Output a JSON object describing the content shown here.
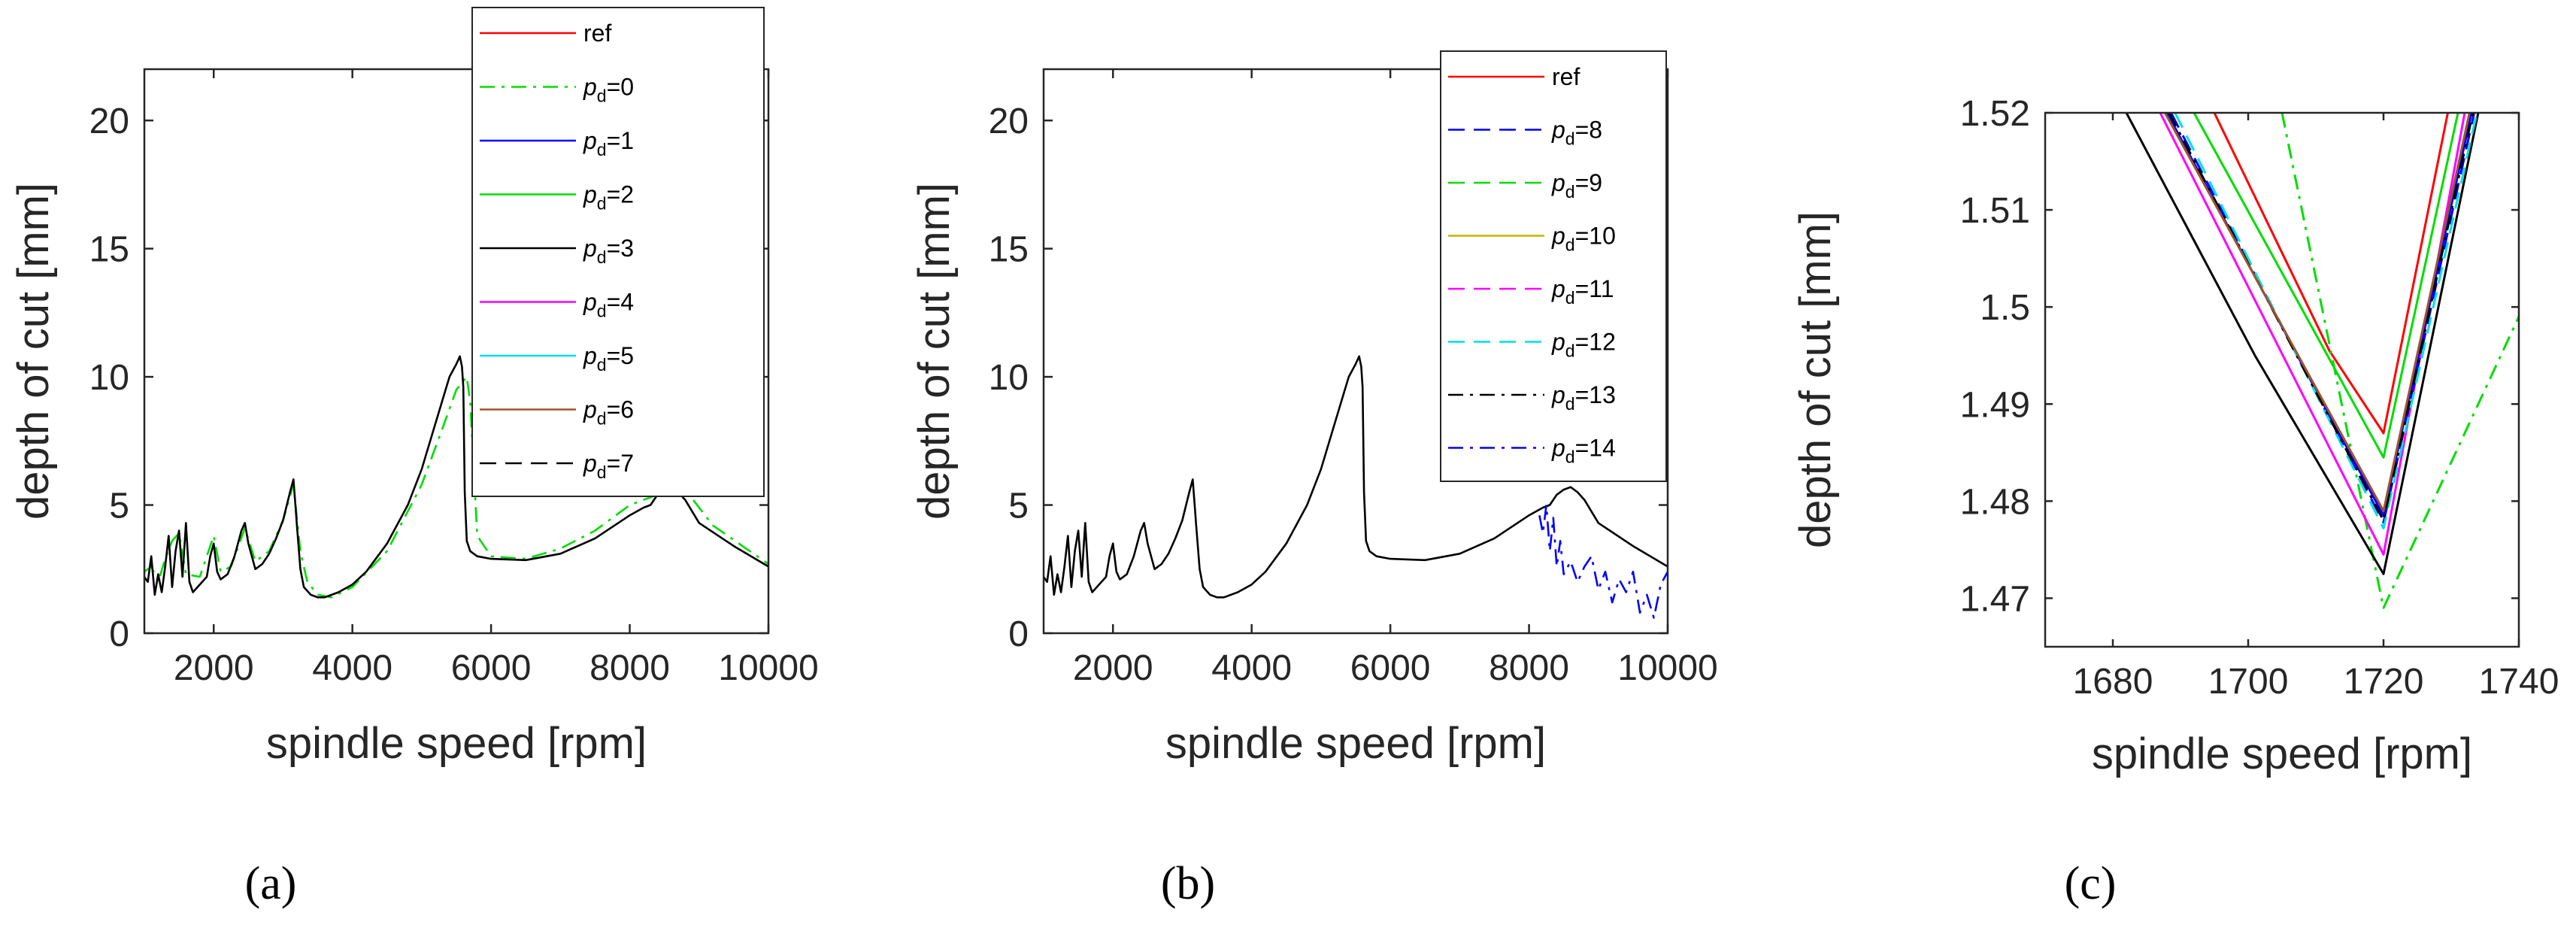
{
  "colors": {
    "ref": "#ff0000",
    "green": "#00dd00",
    "blue": "#0000ff",
    "black": "#000000",
    "magenta": "#ff00ff",
    "cyan": "#00e0e0",
    "brown": "#a0522d",
    "olive": "#c8b400",
    "axis": "#262626"
  },
  "chart_data": [
    {
      "type": "line",
      "panel": "a",
      "caption": "(a)",
      "xlabel": "spindle speed [rpm]",
      "ylabel": "depth of cut [mm]",
      "xlim": [
        1000,
        10000
      ],
      "ylim": [
        0,
        22
      ],
      "xticks": [
        2000,
        4000,
        6000,
        8000,
        10000
      ],
      "yticks": [
        0,
        5,
        10,
        15,
        20
      ],
      "legend_position": "top-right",
      "legend": [
        {
          "label": "ref",
          "sub": "",
          "eq": "",
          "color": "ref",
          "dash": "solid"
        },
        {
          "label": "p",
          "sub": "d",
          "eq": "=0",
          "color": "green",
          "dash": "dashdot"
        },
        {
          "label": "p",
          "sub": "d",
          "eq": "=1",
          "color": "blue",
          "dash": "solid"
        },
        {
          "label": "p",
          "sub": "d",
          "eq": "=2",
          "color": "green",
          "dash": "solid"
        },
        {
          "label": "p",
          "sub": "d",
          "eq": "=3",
          "color": "black",
          "dash": "solid"
        },
        {
          "label": "p",
          "sub": "d",
          "eq": "=4",
          "color": "magenta",
          "dash": "solid"
        },
        {
          "label": "p",
          "sub": "d",
          "eq": "=5",
          "color": "cyan",
          "dash": "solid"
        },
        {
          "label": "p",
          "sub": "d",
          "eq": "=6",
          "color": "brown",
          "dash": "solid"
        },
        {
          "label": "p",
          "sub": "d",
          "eq": "=7",
          "color": "black",
          "dash": "dashed"
        }
      ],
      "series": [
        {
          "name": "p_d=0",
          "color": "green",
          "dash": "dashdot",
          "x": [
            1000,
            1100,
            1200,
            1300,
            1400,
            1500,
            1600,
            1800,
            2000,
            2100,
            2250,
            2450,
            2600,
            2800,
            3000,
            3150,
            3250,
            3350,
            3500,
            3700,
            4000,
            4500,
            5000,
            5300,
            5500,
            5650,
            5700,
            5800,
            6000,
            6500,
            7000,
            7500,
            8000,
            8300,
            8550,
            8700,
            8800,
            9200,
            10000
          ],
          "y": [
            2.4,
            2.6,
            2.0,
            2.9,
            3.6,
            3.9,
            2.3,
            2.2,
            3.8,
            2.4,
            2.6,
            4.1,
            2.8,
            3.2,
            4.4,
            5.8,
            3.2,
            2.0,
            1.5,
            1.4,
            1.8,
            3.2,
            5.8,
            8.0,
            9.5,
            10.0,
            9.0,
            3.8,
            3.0,
            2.9,
            3.3,
            4.0,
            5.0,
            5.3,
            5.6,
            5.9,
            5.6,
            4.2,
            2.7
          ]
        },
        {
          "name": "ref",
          "color": "black",
          "dash": "solid",
          "x": [
            1000,
            1050,
            1100,
            1150,
            1200,
            1250,
            1300,
            1350,
            1400,
            1450,
            1500,
            1550,
            1600,
            1650,
            1700,
            1800,
            1900,
            1950,
            2000,
            2050,
            2100,
            2200,
            2300,
            2400,
            2450,
            2500,
            2600,
            2700,
            2800,
            2900,
            3000,
            3100,
            3150,
            3200,
            3250,
            3300,
            3400,
            3500,
            3600,
            3800,
            4000,
            4200,
            4500,
            4800,
            5000,
            5200,
            5400,
            5500,
            5550,
            5580,
            5600,
            5620,
            5650,
            5700,
            5800,
            6000,
            6500,
            7000,
            7500,
            8000,
            8200,
            8300,
            8400,
            8500,
            8600,
            8700,
            8800,
            9000,
            9500,
            10000
          ],
          "y": [
            2.2,
            2.0,
            3.0,
            1.5,
            2.3,
            1.6,
            2.6,
            3.8,
            1.8,
            3.2,
            4.0,
            2.2,
            4.3,
            2.0,
            1.6,
            1.9,
            2.2,
            3.0,
            3.5,
            2.4,
            2.1,
            2.3,
            3.0,
            4.0,
            4.3,
            3.5,
            2.5,
            2.7,
            3.1,
            3.7,
            4.4,
            5.5,
            6.0,
            4.2,
            2.5,
            1.8,
            1.5,
            1.4,
            1.4,
            1.6,
            1.9,
            2.4,
            3.5,
            5.0,
            6.4,
            8.2,
            10.0,
            10.5,
            10.8,
            10.4,
            9.6,
            5.5,
            3.6,
            3.2,
            3.0,
            2.9,
            2.85,
            3.1,
            3.7,
            4.6,
            4.9,
            5.0,
            5.4,
            5.6,
            5.7,
            5.5,
            5.2,
            4.3,
            3.4,
            2.6
          ]
        }
      ]
    },
    {
      "type": "line",
      "panel": "b",
      "caption": "(b)",
      "xlabel": "spindle speed [rpm]",
      "ylabel": "depth of cut [mm]",
      "xlim": [
        1000,
        10000
      ],
      "ylim": [
        0,
        22
      ],
      "xticks": [
        2000,
        4000,
        6000,
        8000,
        10000
      ],
      "yticks": [
        0,
        5,
        10,
        15,
        20
      ],
      "legend_position": "top-right",
      "legend": [
        {
          "label": "ref",
          "sub": "",
          "eq": "",
          "color": "ref",
          "dash": "solid"
        },
        {
          "label": "p",
          "sub": "d",
          "eq": "=8",
          "color": "blue",
          "dash": "dashed"
        },
        {
          "label": "p",
          "sub": "d",
          "eq": "=9",
          "color": "green",
          "dash": "dashed"
        },
        {
          "label": "p",
          "sub": "d",
          "eq": "=10",
          "color": "olive",
          "dash": "solid"
        },
        {
          "label": "p",
          "sub": "d",
          "eq": "=11",
          "color": "magenta",
          "dash": "dashed"
        },
        {
          "label": "p",
          "sub": "d",
          "eq": "=12",
          "color": "cyan",
          "dash": "dashed"
        },
        {
          "label": "p",
          "sub": "d",
          "eq": "=13",
          "color": "black",
          "dash": "dashdot"
        },
        {
          "label": "p",
          "sub": "d",
          "eq": "=14",
          "color": "blue",
          "dash": "dashdot"
        }
      ],
      "series": [
        {
          "name": "ref",
          "color": "black",
          "dash": "solid",
          "x": [
            1000,
            1050,
            1100,
            1150,
            1200,
            1250,
            1300,
            1350,
            1400,
            1450,
            1500,
            1550,
            1600,
            1650,
            1700,
            1800,
            1900,
            1950,
            2000,
            2050,
            2100,
            2200,
            2300,
            2400,
            2450,
            2500,
            2600,
            2700,
            2800,
            2900,
            3000,
            3100,
            3150,
            3200,
            3250,
            3300,
            3400,
            3500,
            3600,
            3800,
            4000,
            4200,
            4500,
            4800,
            5000,
            5200,
            5400,
            5500,
            5550,
            5580,
            5600,
            5620,
            5650,
            5700,
            5800,
            6000,
            6500,
            7000,
            7500,
            8000,
            8200,
            8300,
            8400,
            8500,
            8600,
            8700,
            8800,
            9000,
            9500,
            10000
          ],
          "y": [
            2.2,
            2.0,
            3.0,
            1.5,
            2.3,
            1.6,
            2.6,
            3.8,
            1.8,
            3.2,
            4.0,
            2.2,
            4.3,
            2.0,
            1.6,
            1.9,
            2.2,
            3.0,
            3.5,
            2.4,
            2.1,
            2.3,
            3.0,
            4.0,
            4.3,
            3.5,
            2.5,
            2.7,
            3.1,
            3.7,
            4.4,
            5.5,
            6.0,
            4.2,
            2.5,
            1.8,
            1.5,
            1.4,
            1.4,
            1.6,
            1.9,
            2.4,
            3.5,
            5.0,
            6.4,
            8.2,
            10.0,
            10.5,
            10.8,
            10.4,
            9.6,
            5.5,
            3.6,
            3.2,
            3.0,
            2.9,
            2.85,
            3.1,
            3.7,
            4.6,
            4.9,
            5.0,
            5.4,
            5.6,
            5.7,
            5.5,
            5.2,
            4.3,
            3.4,
            2.6
          ]
        },
        {
          "name": "p_d=14",
          "color": "blue",
          "dash": "dashdot",
          "x": [
            8150,
            8200,
            8250,
            8300,
            8350,
            8400,
            8450,
            8500,
            8600,
            8700,
            8800,
            8900,
            9000,
            9100,
            9200,
            9300,
            9400,
            9500,
            9600,
            9700,
            9800,
            9900,
            10000
          ],
          "y": [
            4.6,
            3.9,
            5.0,
            3.2,
            4.5,
            2.6,
            3.6,
            2.3,
            2.8,
            2.0,
            2.6,
            3.0,
            1.7,
            2.4,
            1.2,
            2.1,
            1.6,
            2.4,
            0.8,
            1.5,
            0.6,
            1.9,
            2.4
          ]
        }
      ]
    },
    {
      "type": "line",
      "panel": "c",
      "caption": "(c)",
      "xlabel": "spindle speed [rpm]",
      "ylabel": "depth of cut [mm]",
      "xlim": [
        1670,
        1740
      ],
      "ylim": [
        1.465,
        1.52
      ],
      "xticks": [
        1680,
        1700,
        1720,
        1740
      ],
      "yticks": [
        1.47,
        1.48,
        1.49,
        1.5,
        1.51,
        1.52
      ],
      "ytick_labels": [
        "1.47",
        "1.48",
        "1.49",
        "1.5",
        "1.51",
        "1.52"
      ],
      "series": [
        {
          "name": "ref",
          "color": "ref",
          "dash": "solid",
          "x": [
            1695,
            1712,
            1720,
            1729.5
          ],
          "y": [
            1.52,
            1.4955,
            1.487,
            1.52
          ]
        },
        {
          "name": "p_d=0",
          "color": "green",
          "dash": "dashdot",
          "x": [
            1705,
            1720,
            1740
          ],
          "y": [
            1.52,
            1.469,
            1.499
          ]
        },
        {
          "name": "p_d=2",
          "color": "green",
          "dash": "solid",
          "x": [
            1692,
            1720,
            1731
          ],
          "y": [
            1.52,
            1.4845,
            1.52
          ]
        },
        {
          "name": "p_d=4",
          "color": "magenta",
          "dash": "solid",
          "x": [
            1687,
            1720,
            1732
          ],
          "y": [
            1.52,
            1.4745,
            1.52
          ]
        },
        {
          "name": "p_d=3",
          "color": "black",
          "dash": "solid",
          "x": [
            1682,
            1701,
            1720,
            1734
          ],
          "y": [
            1.52,
            1.495,
            1.4725,
            1.52
          ]
        },
        {
          "name": "p_d=1",
          "color": "blue",
          "dash": "solid",
          "x": [
            1688,
            1720,
            1733
          ],
          "y": [
            1.52,
            1.4785,
            1.52
          ]
        },
        {
          "name": "p_d=8",
          "color": "blue",
          "dash": "dashed",
          "x": [
            1688.6,
            1720,
            1733.4
          ],
          "y": [
            1.52,
            1.4778,
            1.52
          ]
        },
        {
          "name": "p_d=12",
          "color": "cyan",
          "dash": "dashed",
          "x": [
            1689.2,
            1720,
            1733.8
          ],
          "y": [
            1.52,
            1.4772,
            1.52
          ]
        },
        {
          "name": "p_d=13",
          "color": "black",
          "dash": "dashdot",
          "x": [
            1688.3,
            1720,
            1733.2
          ],
          "y": [
            1.52,
            1.478,
            1.52
          ]
        },
        {
          "name": "p_d=6",
          "color": "brown",
          "dash": "solid",
          "x": [
            1687.7,
            1720,
            1732.7
          ],
          "y": [
            1.52,
            1.479,
            1.52
          ]
        }
      ]
    }
  ]
}
